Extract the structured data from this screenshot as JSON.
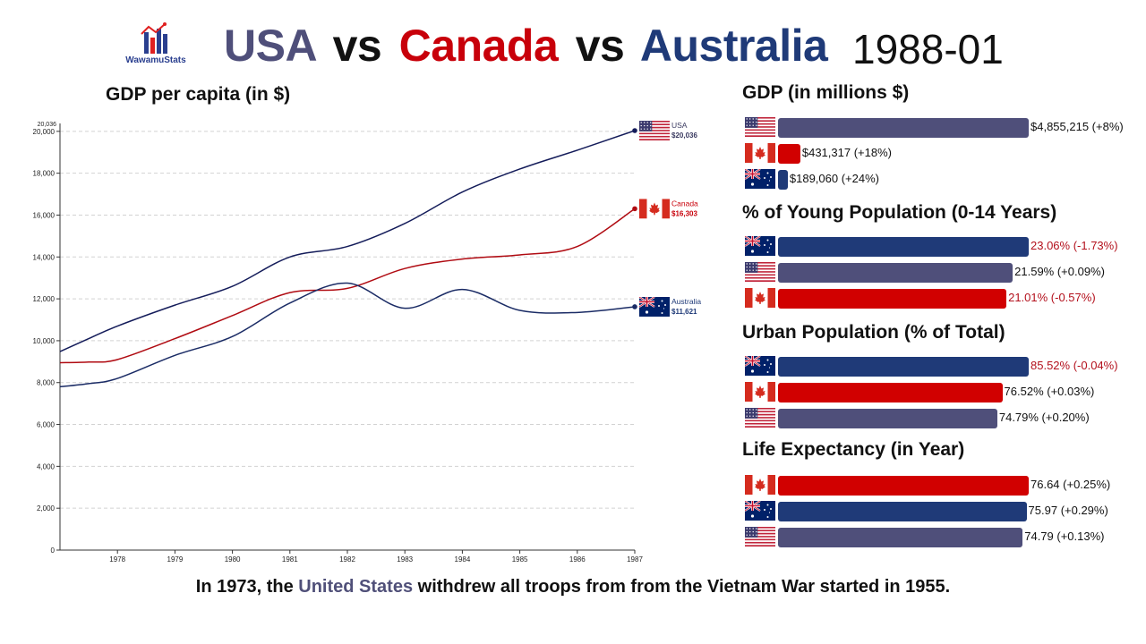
{
  "logo": {
    "text": "WawamuStats"
  },
  "title": {
    "country1": "USA",
    "vs1": "vs",
    "country2": "Canada",
    "vs2": "vs",
    "country3": "Australia",
    "date": "1988-01"
  },
  "colors": {
    "usa": "#4f4f7a",
    "canada": "#d10000",
    "australia": "#1f3a78",
    "negative_text": "#b3101c",
    "usa_line": "#141c5a",
    "australia_line": "#1a2b65",
    "canada_line": "#b00b12"
  },
  "chart_data": [
    {
      "type": "line",
      "title": "GDP per capita (in $)",
      "x": [
        1977,
        1977.5,
        1978,
        1979,
        1980,
        1981,
        1982,
        1983,
        1984,
        1985,
        1986,
        1987
      ],
      "x_ticks": [
        "1978",
        "1979",
        "1980",
        "1981",
        "1982",
        "1983",
        "1984",
        "1985",
        "1986",
        "1987"
      ],
      "xlim": [
        1977,
        1987
      ],
      "ylim": [
        0,
        20036
      ],
      "y_ticks": [
        0,
        2000,
        4000,
        6000,
        8000,
        10000,
        12000,
        14000,
        16000,
        18000,
        20000
      ],
      "y_tick_labels": [
        "0",
        "2,000",
        "4,000",
        "6,000",
        "8,000",
        "10,000",
        "12,000",
        "14,000",
        "16,000",
        "18,000",
        "20,000"
      ],
      "y_max_label": "20,036",
      "grid": true,
      "series": [
        {
          "name": "USA",
          "end_label": "$20,036",
          "flag": "usa",
          "values": [
            9480,
            10100,
            10700,
            11700,
            12600,
            14000,
            14500,
            15600,
            17100,
            18200,
            19100,
            20036
          ]
        },
        {
          "name": "Canada",
          "end_label": "$16,303",
          "flag": "canada",
          "values": [
            8950,
            8980,
            9100,
            10100,
            11200,
            12300,
            12500,
            13450,
            13900,
            14100,
            14500,
            16303
          ]
        },
        {
          "name": "Australia",
          "end_label": "$11,621",
          "flag": "australia",
          "values": [
            7800,
            7950,
            8200,
            9300,
            10200,
            11800,
            12750,
            11550,
            12450,
            11450,
            11350,
            11621
          ]
        }
      ]
    },
    {
      "type": "bar",
      "title": "GDP (in millions $)",
      "max": 4855215,
      "rows": [
        {
          "flag": "usa",
          "value": 4855215,
          "label": "$4,855,215 (+8%)",
          "negative": false
        },
        {
          "flag": "canada",
          "value": 431317,
          "label": "$431,317 (+18%)",
          "negative": false
        },
        {
          "flag": "australia",
          "value": 189060,
          "label": "$189,060 (+24%)",
          "negative": false
        }
      ]
    },
    {
      "type": "bar",
      "title": "% of Young Population (0-14 Years)",
      "max": 23.06,
      "rows": [
        {
          "flag": "australia",
          "value": 23.06,
          "label": "23.06% (-1.73%)",
          "negative": true
        },
        {
          "flag": "usa",
          "value": 21.59,
          "label": "21.59% (+0.09%)",
          "negative": false
        },
        {
          "flag": "canada",
          "value": 21.01,
          "label": "21.01% (-0.57%)",
          "negative": true
        }
      ]
    },
    {
      "type": "bar",
      "title": "Urban Population (% of Total)",
      "max": 85.52,
      "rows": [
        {
          "flag": "australia",
          "value": 85.52,
          "label": "85.52% (-0.04%)",
          "negative": true
        },
        {
          "flag": "canada",
          "value": 76.52,
          "label": "76.52% (+0.03%)",
          "negative": false
        },
        {
          "flag": "usa",
          "value": 74.79,
          "label": "74.79% (+0.20%)",
          "negative": false
        }
      ]
    },
    {
      "type": "bar",
      "title": "Life Expectancy (in Year)",
      "max": 76.64,
      "rows": [
        {
          "flag": "canada",
          "value": 76.64,
          "label": "76.64 (+0.25%)",
          "negative": false
        },
        {
          "flag": "australia",
          "value": 75.97,
          "label": "75.97 (+0.29%)",
          "negative": false
        },
        {
          "flag": "usa",
          "value": 74.79,
          "label": "74.79 (+0.13%)",
          "negative": false
        }
      ]
    }
  ],
  "caption": {
    "part1": "In 1973, the ",
    "highlight": "United States",
    "part2": " withdrew all troops from from the Vietnam War started in 1955."
  }
}
